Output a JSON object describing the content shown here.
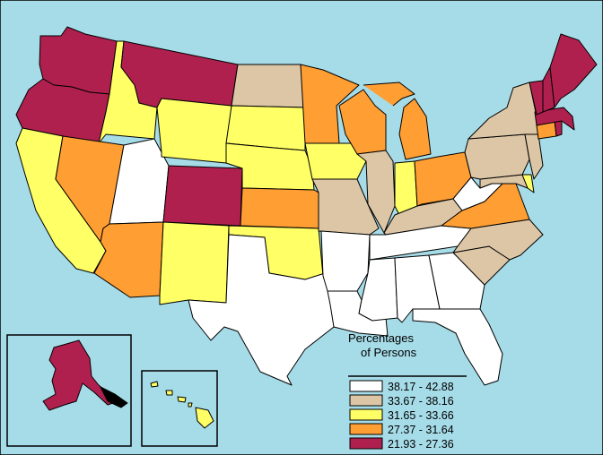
{
  "colors": {
    "ocean": "#a6dce8",
    "border": "#000000",
    "cls1": "#ffffff",
    "cls2": "#dcc6a6",
    "cls3": "#ffff66",
    "cls4": "#ff9e33",
    "cls5": "#b0204f"
  },
  "legend": {
    "title_line1": "Percentages",
    "title_line2": "of Persons",
    "classes": [
      {
        "label": "38.17 - 42.88",
        "color": "#ffffff"
      },
      {
        "label": "33.67 - 38.16",
        "color": "#dcc6a6"
      },
      {
        "label": "31.65 - 33.66",
        "color": "#ffff66"
      },
      {
        "label": "27.37 - 31.64",
        "color": "#ff9e33"
      },
      {
        "label": "21.93 - 27.36",
        "color": "#b0204f"
      }
    ]
  },
  "states": {
    "WA": 5,
    "OR": 5,
    "CA": 3,
    "ID": 3,
    "NV": 4,
    "UT": 1,
    "AZ": 4,
    "MT": 5,
    "WY": 3,
    "CO": 5,
    "NM": 3,
    "ND": 2,
    "SD": 3,
    "NE": 3,
    "KS": 4,
    "OK": 3,
    "TX": 1,
    "MN": 4,
    "IA": 3,
    "MO": 2,
    "AR": 1,
    "LA": 1,
    "WI": 4,
    "IL": 2,
    "MI": 4,
    "IN": 3,
    "OH": 4,
    "KY": 2,
    "TN": 1,
    "MS": 1,
    "AL": 1,
    "GA": 1,
    "FL": 1,
    "SC": 2,
    "NC": 2,
    "VA": 4,
    "WV": 1,
    "MD": 2,
    "DE": 3,
    "NJ": 2,
    "PA": 2,
    "NY": 2,
    "CT": 4,
    "RI": 5,
    "MA": 5,
    "VT": 5,
    "NH": 5,
    "ME": 5,
    "AK": 5,
    "HI": 3
  }
}
